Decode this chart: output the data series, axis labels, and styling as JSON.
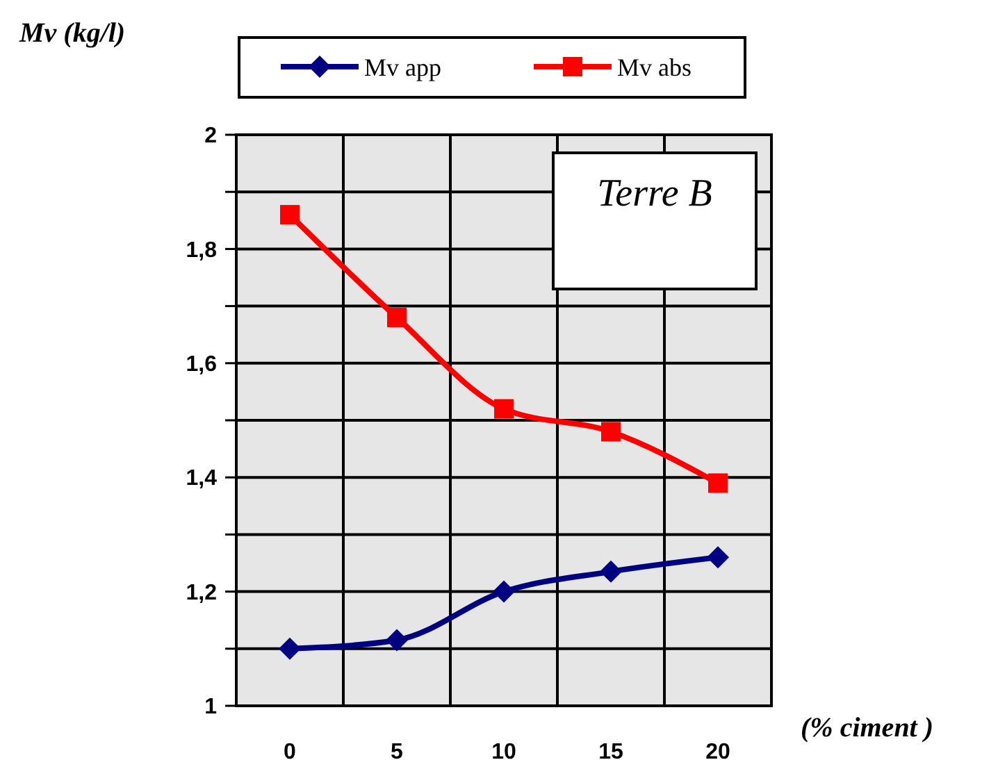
{
  "chart_data": {
    "type": "line",
    "ylabel": "Mv (kg/l)",
    "xlabel": "(% ciment )",
    "annotations": [
      "Terre B"
    ],
    "categories": [
      "0",
      "5",
      "10",
      "15",
      "20"
    ],
    "series": [
      {
        "name": "Mv app",
        "color": "#000080",
        "values": [
          1.1,
          1.115,
          1.2,
          1.235,
          1.26
        ],
        "marker": "diamond"
      },
      {
        "name": "Mv abs",
        "color": "#ff0000",
        "values": [
          1.86,
          1.68,
          1.52,
          1.48,
          1.39
        ],
        "marker": "square"
      }
    ],
    "ylim": [
      1,
      2
    ],
    "yticks": [
      1,
      {
        "value": 1.1,
        "label": null
      },
      {
        "value": 1.2,
        "label": "1,2"
      },
      {
        "value": 1.3,
        "label": null
      },
      {
        "value": 1.4,
        "label": "1,4"
      },
      {
        "value": 1.5,
        "label": null
      },
      {
        "value": 1.6,
        "label": "1,6"
      },
      {
        "value": 1.7,
        "label": null
      },
      {
        "value": 1.8,
        "label": "1,8"
      },
      {
        "value": 1.9,
        "label": null
      },
      2
    ],
    "grid": true,
    "legend": "top",
    "line_style": "solid"
  }
}
